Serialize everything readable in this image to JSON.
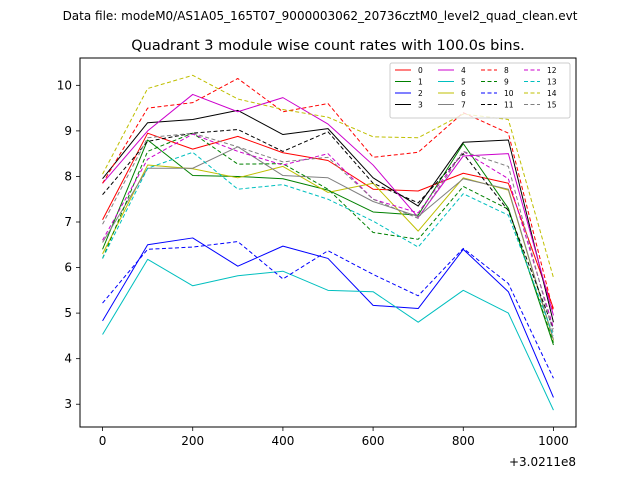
{
  "header": {
    "file_label": "Data file: modeM0/AS1A05_165T07_9000003062_20736cztM0_level2_quad_clean.evt"
  },
  "chart_data": {
    "type": "line",
    "title": "Quadrant 3 module wise count rates with 100.0s bins.",
    "xlabel": "",
    "ylabel": "",
    "x_offset_label": "+3.0211e8",
    "x": [
      0,
      100,
      200,
      300,
      400,
      500,
      600,
      700,
      800,
      900,
      1000
    ],
    "xlim": [
      -50,
      1050
    ],
    "ylim": [
      2.5,
      10.6
    ],
    "xticks": [
      0,
      200,
      400,
      600,
      800,
      1000
    ],
    "yticks": [
      3,
      4,
      5,
      6,
      7,
      8,
      9,
      10
    ],
    "legend_position": "top-right",
    "legend_columns": 4,
    "series": [
      {
        "name": "0",
        "color": "#ff0000",
        "dash": "solid",
        "values": [
          7.05,
          8.95,
          8.6,
          8.88,
          8.52,
          8.35,
          7.72,
          7.68,
          8.07,
          7.85,
          5.1
        ]
      },
      {
        "name": "1",
        "color": "#008000",
        "dash": "solid",
        "values": [
          6.4,
          8.8,
          8.02,
          8.0,
          7.95,
          7.7,
          7.22,
          7.15,
          8.72,
          7.3,
          4.3
        ]
      },
      {
        "name": "2",
        "color": "#0000ff",
        "dash": "solid",
        "values": [
          4.83,
          6.5,
          6.65,
          6.03,
          6.47,
          6.2,
          5.17,
          5.1,
          6.4,
          5.47,
          3.15
        ]
      },
      {
        "name": "3",
        "color": "#000000",
        "dash": "solid",
        "values": [
          7.95,
          9.18,
          9.25,
          9.45,
          8.92,
          9.05,
          7.97,
          7.35,
          8.75,
          8.8,
          4.8
        ]
      },
      {
        "name": "4",
        "color": "#cc00cc",
        "dash": "solid",
        "values": [
          7.85,
          9.0,
          9.8,
          9.42,
          9.73,
          9.15,
          8.25,
          7.1,
          8.45,
          8.5,
          4.95
        ]
      },
      {
        "name": "5",
        "color": "#00bfbf",
        "dash": "solid",
        "values": [
          4.53,
          6.18,
          5.6,
          5.82,
          5.92,
          5.5,
          5.47,
          4.8,
          5.5,
          5.0,
          2.87
        ]
      },
      {
        "name": "6",
        "color": "#bfbf00",
        "dash": "solid",
        "values": [
          6.3,
          8.25,
          8.17,
          7.97,
          8.22,
          7.65,
          7.85,
          6.8,
          7.97,
          7.7,
          4.4
        ]
      },
      {
        "name": "7",
        "color": "#808080",
        "dash": "solid",
        "values": [
          6.55,
          8.18,
          8.18,
          8.65,
          8.02,
          7.97,
          7.45,
          7.12,
          7.95,
          7.72,
          4.42
        ]
      },
      {
        "name": "8",
        "color": "#ff0000",
        "dash": "dashed",
        "values": [
          7.85,
          9.5,
          9.62,
          10.15,
          9.42,
          9.6,
          8.42,
          8.53,
          9.4,
          8.95,
          5.03
        ]
      },
      {
        "name": "9",
        "color": "#008000",
        "dash": "dashed",
        "values": [
          6.2,
          8.55,
          8.95,
          8.27,
          8.28,
          7.72,
          6.77,
          6.62,
          7.78,
          7.28,
          4.35
        ]
      },
      {
        "name": "10",
        "color": "#0000ff",
        "dash": "dashed",
        "values": [
          5.22,
          6.4,
          6.45,
          6.57,
          5.75,
          6.37,
          5.85,
          5.38,
          6.42,
          5.65,
          3.57
        ]
      },
      {
        "name": "11",
        "color": "#000000",
        "dash": "dashed",
        "values": [
          7.6,
          8.77,
          8.95,
          9.03,
          8.55,
          8.98,
          7.85,
          7.42,
          8.5,
          7.25,
          4.65
        ]
      },
      {
        "name": "12",
        "color": "#cc00cc",
        "dash": "dashed",
        "values": [
          6.6,
          8.38,
          8.93,
          8.55,
          8.25,
          8.5,
          7.5,
          7.2,
          8.55,
          7.95,
          4.68
        ]
      },
      {
        "name": "13",
        "color": "#00bfbf",
        "dash": "dashed",
        "values": [
          6.2,
          8.18,
          8.53,
          7.72,
          7.82,
          7.5,
          7.02,
          6.45,
          7.62,
          7.15,
          4.5
        ]
      },
      {
        "name": "14",
        "color": "#bfbf00",
        "dash": "dashed",
        "values": [
          8.05,
          9.93,
          10.22,
          9.7,
          9.47,
          9.3,
          8.87,
          8.85,
          9.37,
          9.25,
          5.78
        ]
      },
      {
        "name": "15",
        "color": "#808080",
        "dash": "dashed",
        "values": [
          6.95,
          8.85,
          8.95,
          8.65,
          8.32,
          8.42,
          7.5,
          7.08,
          8.55,
          8.22,
          4.55
        ]
      }
    ]
  }
}
